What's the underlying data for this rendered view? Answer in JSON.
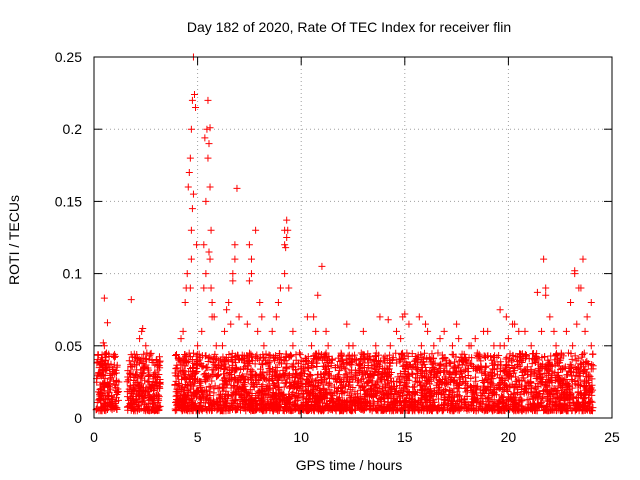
{
  "chart_data": {
    "type": "scatter",
    "title": "Day 182 of 2020, Rate Of TEC Index for receiver flin",
    "xlabel": "GPS time / hours",
    "ylabel": "ROTI / TECUs",
    "xlim": [
      0,
      25
    ],
    "ylim": [
      0,
      0.25
    ],
    "x_ticks": [
      0,
      5,
      10,
      15,
      20,
      25
    ],
    "x_tick_labels": [
      "0",
      "5",
      "10",
      "15",
      "20",
      "25"
    ],
    "y_ticks": [
      0,
      0.05,
      0.1,
      0.15,
      0.2,
      0.25
    ],
    "y_tick_labels": [
      "0",
      "0.05",
      "0.1",
      "0.15",
      "0.2",
      "0.25"
    ],
    "grid": true,
    "marker": "+",
    "colors": {
      "points": "#ff0000",
      "grid": "#a0a0a0",
      "axes": "#000000"
    },
    "series": [
      {
        "name": "ROTI",
        "x": [
          0.3,
          0.4,
          0.5,
          0.55,
          0.6,
          0.7,
          0.8,
          0.9,
          1.0,
          0.65,
          0.5,
          0.45,
          0.6,
          1.7,
          1.75,
          1.8,
          1.9,
          2.0,
          2.1,
          2.2,
          2.3,
          2.4,
          2.5,
          2.6,
          2.7,
          2.8,
          2.9,
          2.35,
          2.55,
          4.0,
          4.1,
          4.2,
          4.3,
          4.4,
          4.45,
          4.5,
          4.55,
          4.6,
          4.65,
          4.7,
          4.75,
          4.8,
          4.85,
          4.9,
          4.95,
          5.0,
          4.7,
          4.75,
          4.8,
          4.65,
          4.7,
          5.2,
          5.3,
          5.4,
          5.45,
          5.5,
          5.55,
          5.6,
          5.65,
          5.7,
          5.8,
          5.9,
          6.0,
          5.4,
          5.5,
          5.6,
          5.3,
          5.35,
          5.55,
          5.6,
          5.65,
          5.7,
          6.1,
          6.3,
          6.5,
          6.7,
          6.8,
          6.9,
          7.0,
          6.7,
          6.8,
          6.2,
          6.4,
          6.6,
          7.2,
          7.4,
          7.5,
          7.6,
          7.8,
          8.0,
          8.2,
          7.5,
          7.6,
          8.1,
          7.9,
          8.4,
          8.6,
          8.8,
          8.9,
          9.0,
          9.2,
          9.3,
          9.4,
          9.6,
          9.2,
          9.3,
          9.25,
          9.35,
          9.2,
          9.6,
          9.8,
          10.0,
          10.3,
          10.5,
          10.7,
          11.0,
          11.2,
          11.5,
          10.8,
          11.2,
          11.8,
          10.6,
          11.3,
          12.0,
          12.3,
          12.6,
          12.9,
          13.2,
          13.5,
          13.8,
          12.5,
          13.0,
          12.2,
          13.6,
          14.0,
          14.3,
          14.6,
          14.9,
          15.0,
          15.2,
          14.4,
          14.8,
          15.1,
          14.2,
          15.5,
          15.8,
          16.1,
          16.4,
          16.7,
          17.0,
          16.0,
          16.6,
          15.7,
          16.9,
          17.3,
          17.6,
          17.9,
          18.2,
          18.5,
          18.8,
          17.5,
          18.1,
          17.8,
          18.4,
          19.0,
          19.3,
          19.6,
          19.9,
          20.2,
          20.5,
          19.2,
          19.6,
          20.3,
          20.0,
          19.8,
          20.8,
          21.1,
          21.4,
          21.7,
          21.8,
          22.0,
          22.3,
          21.6,
          21.9,
          21.8,
          22.2,
          21.5,
          22.5,
          22.8,
          23.0,
          23.2,
          23.4,
          23.6,
          23.8,
          24.0,
          23.1,
          23.3,
          23.5,
          23.2,
          23.7,
          24.0,
          22.9
        ],
        "y": [
          0.02,
          0.03,
          0.05,
          0.04,
          0.035,
          0.015,
          0.02,
          0.03,
          0.01,
          0.066,
          0.083,
          0.052,
          0.045,
          0.02,
          0.03,
          0.082,
          0.015,
          0.03,
          0.04,
          0.055,
          0.06,
          0.035,
          0.05,
          0.025,
          0.03,
          0.04,
          0.02,
          0.062,
          0.045,
          0.02,
          0.04,
          0.055,
          0.06,
          0.08,
          0.09,
          0.1,
          0.16,
          0.17,
          0.18,
          0.2,
          0.22,
          0.25,
          0.224,
          0.215,
          0.12,
          0.05,
          0.13,
          0.145,
          0.155,
          0.09,
          0.11,
          0.06,
          0.09,
          0.1,
          0.2,
          0.22,
          0.19,
          0.16,
          0.13,
          0.08,
          0.07,
          0.05,
          0.04,
          0.15,
          0.18,
          0.201,
          0.12,
          0.194,
          0.115,
          0.11,
          0.09,
          0.07,
          0.04,
          0.06,
          0.08,
          0.1,
          0.12,
          0.159,
          0.07,
          0.095,
          0.11,
          0.05,
          0.075,
          0.065,
          0.04,
          0.065,
          0.095,
          0.1,
          0.13,
          0.08,
          0.05,
          0.12,
          0.11,
          0.07,
          0.06,
          0.04,
          0.06,
          0.07,
          0.08,
          0.09,
          0.12,
          0.137,
          0.09,
          0.06,
          0.13,
          0.125,
          0.118,
          0.13,
          0.1,
          0.05,
          0.03,
          0.04,
          0.07,
          0.05,
          0.06,
          0.105,
          0.045,
          0.04,
          0.085,
          0.06,
          0.03,
          0.07,
          0.05,
          0.04,
          0.05,
          0.04,
          0.045,
          0.03,
          0.04,
          0.07,
          0.05,
          0.06,
          0.065,
          0.05,
          0.04,
          0.05,
          0.06,
          0.07,
          0.072,
          0.065,
          0.04,
          0.055,
          0.045,
          0.068,
          0.04,
          0.05,
          0.06,
          0.05,
          0.055,
          0.04,
          0.065,
          0.045,
          0.07,
          0.06,
          0.05,
          0.055,
          0.04,
          0.05,
          0.045,
          0.06,
          0.065,
          0.05,
          0.04,
          0.055,
          0.06,
          0.05,
          0.075,
          0.07,
          0.065,
          0.06,
          0.04,
          0.05,
          0.065,
          0.055,
          0.05,
          0.06,
          0.05,
          0.087,
          0.11,
          0.09,
          0.07,
          0.05,
          0.06,
          0.04,
          0.085,
          0.06,
          0.03,
          0.04,
          0.06,
          0.08,
          0.1,
          0.09,
          0.11,
          0.07,
          0.08,
          0.05,
          0.065,
          0.09,
          0.102,
          0.06,
          0.05,
          0.045
        ]
      }
    ]
  }
}
